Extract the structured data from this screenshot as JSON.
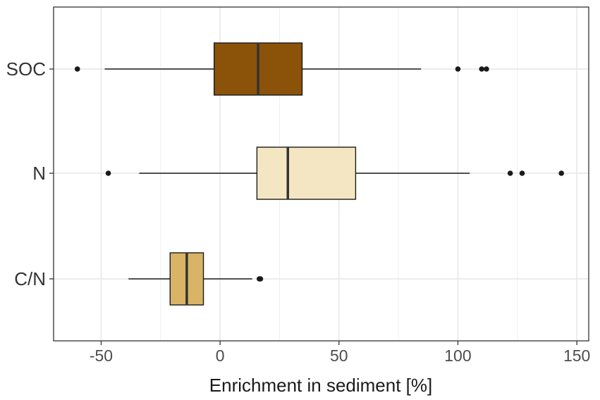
{
  "chart_data": {
    "type": "boxplot",
    "orientation": "horizontal",
    "xlabel": "Enrichment in sediment [%]",
    "xlim": [
      -70,
      155
    ],
    "x_ticks": [
      -50,
      0,
      50,
      100,
      150
    ],
    "x_tick_labels": [
      "-50",
      "0",
      "50",
      "100",
      "150"
    ],
    "grid": true,
    "categories": [
      "SOC",
      "N",
      "C/N"
    ],
    "series": [
      {
        "category": "SOC",
        "color": "#8B5209",
        "whisker_low": -48.5,
        "q1": -2.5,
        "median": 16,
        "q3": 34.5,
        "whisker_high": 84.5,
        "outliers": [
          -60,
          100,
          110,
          112
        ]
      },
      {
        "category": "N",
        "color": "#F5E6C3",
        "whisker_low": -34,
        "q1": 15.5,
        "median": 28.5,
        "q3": 57,
        "whisker_high": 105,
        "outliers": [
          -47,
          122,
          127,
          143.5
        ]
      },
      {
        "category": "C/N",
        "color": "#D9B466",
        "whisker_low": -38.5,
        "q1": -21,
        "median": -14,
        "q3": -7,
        "whisker_high": 13.5,
        "outliers": [
          16.5,
          17
        ]
      }
    ]
  }
}
